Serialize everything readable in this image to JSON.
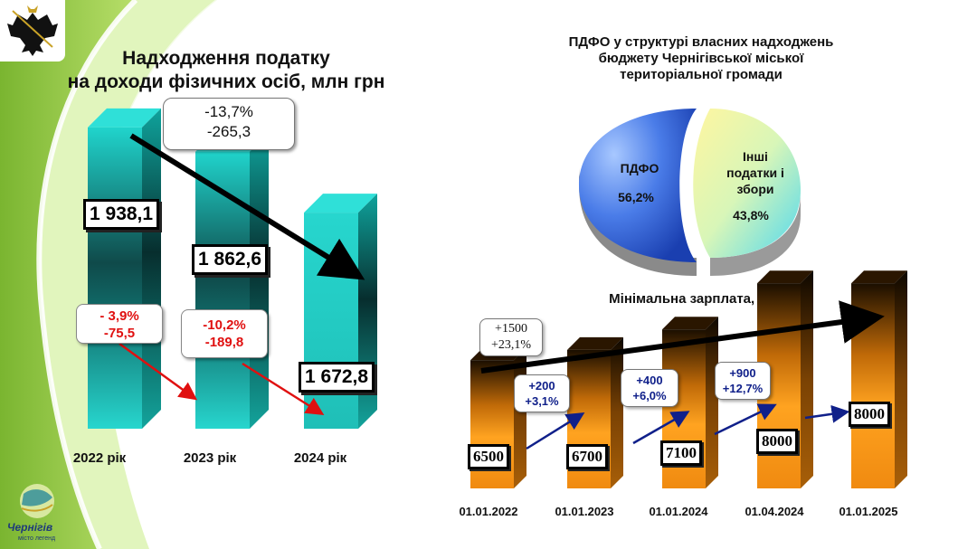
{
  "colors": {
    "tax_bar": "#1fd0c8",
    "wage_bar": "#f59a10",
    "negative": "#e01010",
    "positive": "#10208a",
    "green_bg": "#8dc63f"
  },
  "tax_chart": {
    "title_line1": "Надходження податку",
    "title_line2": "на доходи фізичних осіб, млн грн",
    "total_change": {
      "pct": "-13,7%",
      "abs": "-265,3"
    },
    "value_labels": [
      "1 938,1",
      "1 862,6",
      "1 672,8"
    ],
    "changes": [
      {
        "pct": "- 3,9%",
        "abs": "-75,5"
      },
      {
        "pct": "-10,2%",
        "abs": "-189,8"
      }
    ],
    "year_labels": [
      "2022 рік",
      "2023 рік",
      "2024 рік"
    ]
  },
  "pie_chart": {
    "title_line1": "ПДФО у структурі власних надходжень",
    "title_line2": "бюджету Чернігівської міської",
    "title_line3": "територіальної громади",
    "slices": [
      {
        "label": "ПДФО",
        "pct": "56,2%"
      },
      {
        "label_lines": [
          "Інші",
          "податки і",
          "збори"
        ],
        "pct": "43,8%"
      }
    ]
  },
  "wage_chart": {
    "title": "Мінімальна зарплата, грн",
    "dates": [
      "01.01.2022",
      "01.01.2023",
      "01.01.2024",
      "01.04.2024",
      "01.01.2025"
    ],
    "value_labels": [
      "6500",
      "6700",
      "7100",
      "8000",
      "8000"
    ],
    "total_increase": {
      "abs": "+1500",
      "pct": "+23,1%"
    },
    "increases": [
      {
        "abs": "+200",
        "pct": "+3,1%"
      },
      {
        "abs": "+400",
        "pct": "+6,0%"
      },
      {
        "abs": "+900",
        "pct": "+12,7%"
      }
    ]
  },
  "chart_data": [
    {
      "type": "bar",
      "title": "Надходження податку на доходи фізичних осіб, млн грн",
      "categories": [
        "2022 рік",
        "2023 рік",
        "2024 рік"
      ],
      "values": [
        1938.1,
        1862.6,
        1672.8
      ],
      "changes": [
        {
          "pct": -3.9,
          "abs": -75.5
        },
        {
          "pct": -10.2,
          "abs": -189.8
        }
      ],
      "total_change": {
        "pct": -13.7,
        "abs": -265.3
      }
    },
    {
      "type": "pie",
      "title": "ПДФО у структурі власних надходжень бюджету Чернігівської міської територіальної громади",
      "categories": [
        "ПДФО",
        "Інші податки і збори"
      ],
      "values": [
        56.2,
        43.8
      ]
    },
    {
      "type": "bar",
      "title": "Мінімальна зарплата, грн",
      "categories": [
        "01.01.2022",
        "01.01.2023",
        "01.01.2024",
        "01.04.2024",
        "01.01.2025"
      ],
      "values": [
        6500,
        6700,
        7100,
        8000,
        8000
      ],
      "total_increase": {
        "abs": 1500,
        "pct": 23.1
      }
    }
  ],
  "logo": {
    "city_name": "Чернігів",
    "tagline": "місто легенд"
  }
}
